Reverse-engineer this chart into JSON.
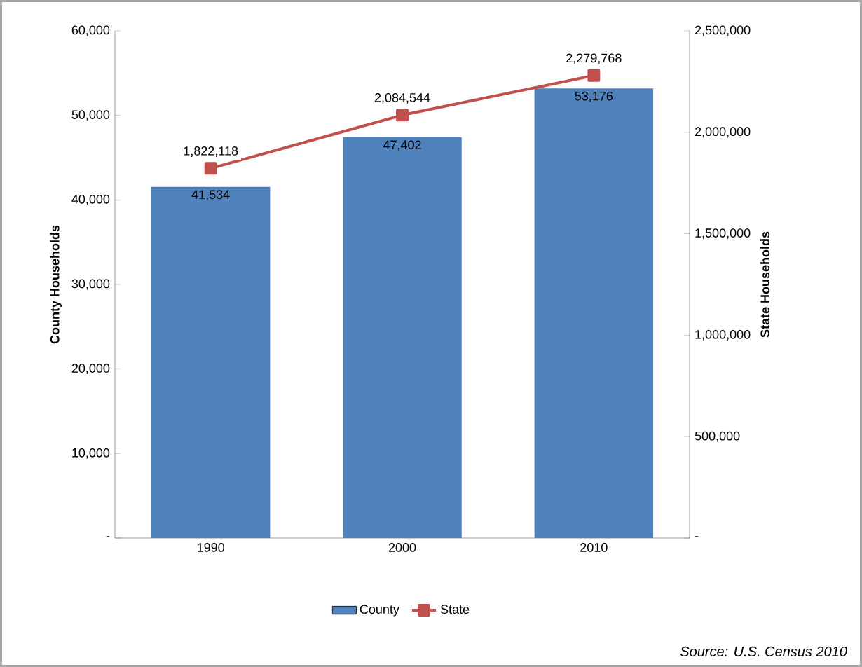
{
  "chart_data": {
    "type": "bar",
    "categories": [
      "1990",
      "2000",
      "2010"
    ],
    "series": [
      {
        "name": "County",
        "color": "#4f81bd",
        "values": [
          41534,
          47402,
          53176
        ],
        "value_labels": [
          "41,534",
          "47,402",
          "53,176"
        ]
      },
      {
        "name": "State",
        "type": "line",
        "axis": "y2",
        "color": "#c0504d",
        "marker": "square",
        "values": [
          1822118,
          2084544,
          2279768
        ],
        "value_labels": [
          "1,822,118",
          "2,084,544",
          "2,279,768"
        ]
      }
    ],
    "ylabel": "County Households",
    "y2label": "State Households",
    "ylim": [
      0,
      60000
    ],
    "yticks": [
      {
        "value": 0,
        "label": "-"
      },
      {
        "value": 10000,
        "label": "10,000"
      },
      {
        "value": 20000,
        "label": "20,000"
      },
      {
        "value": 30000,
        "label": "30,000"
      },
      {
        "value": 40000,
        "label": "40,000"
      },
      {
        "value": 50000,
        "label": "50,000"
      },
      {
        "value": 60000,
        "label": "60,000"
      }
    ],
    "y2lim": [
      0,
      2500000
    ],
    "y2ticks": [
      {
        "value": 0,
        "label": "-"
      },
      {
        "value": 500000,
        "label": "500,000"
      },
      {
        "value": 1000000,
        "label": "1,000,000"
      },
      {
        "value": 1500000,
        "label": "1,500,000"
      },
      {
        "value": 2000000,
        "label": "2,000,000"
      },
      {
        "value": 2500000,
        "label": "2,500,000"
      }
    ],
    "legend": "bottom",
    "annotations": [
      "Source: U.S. Census 2010"
    ]
  }
}
